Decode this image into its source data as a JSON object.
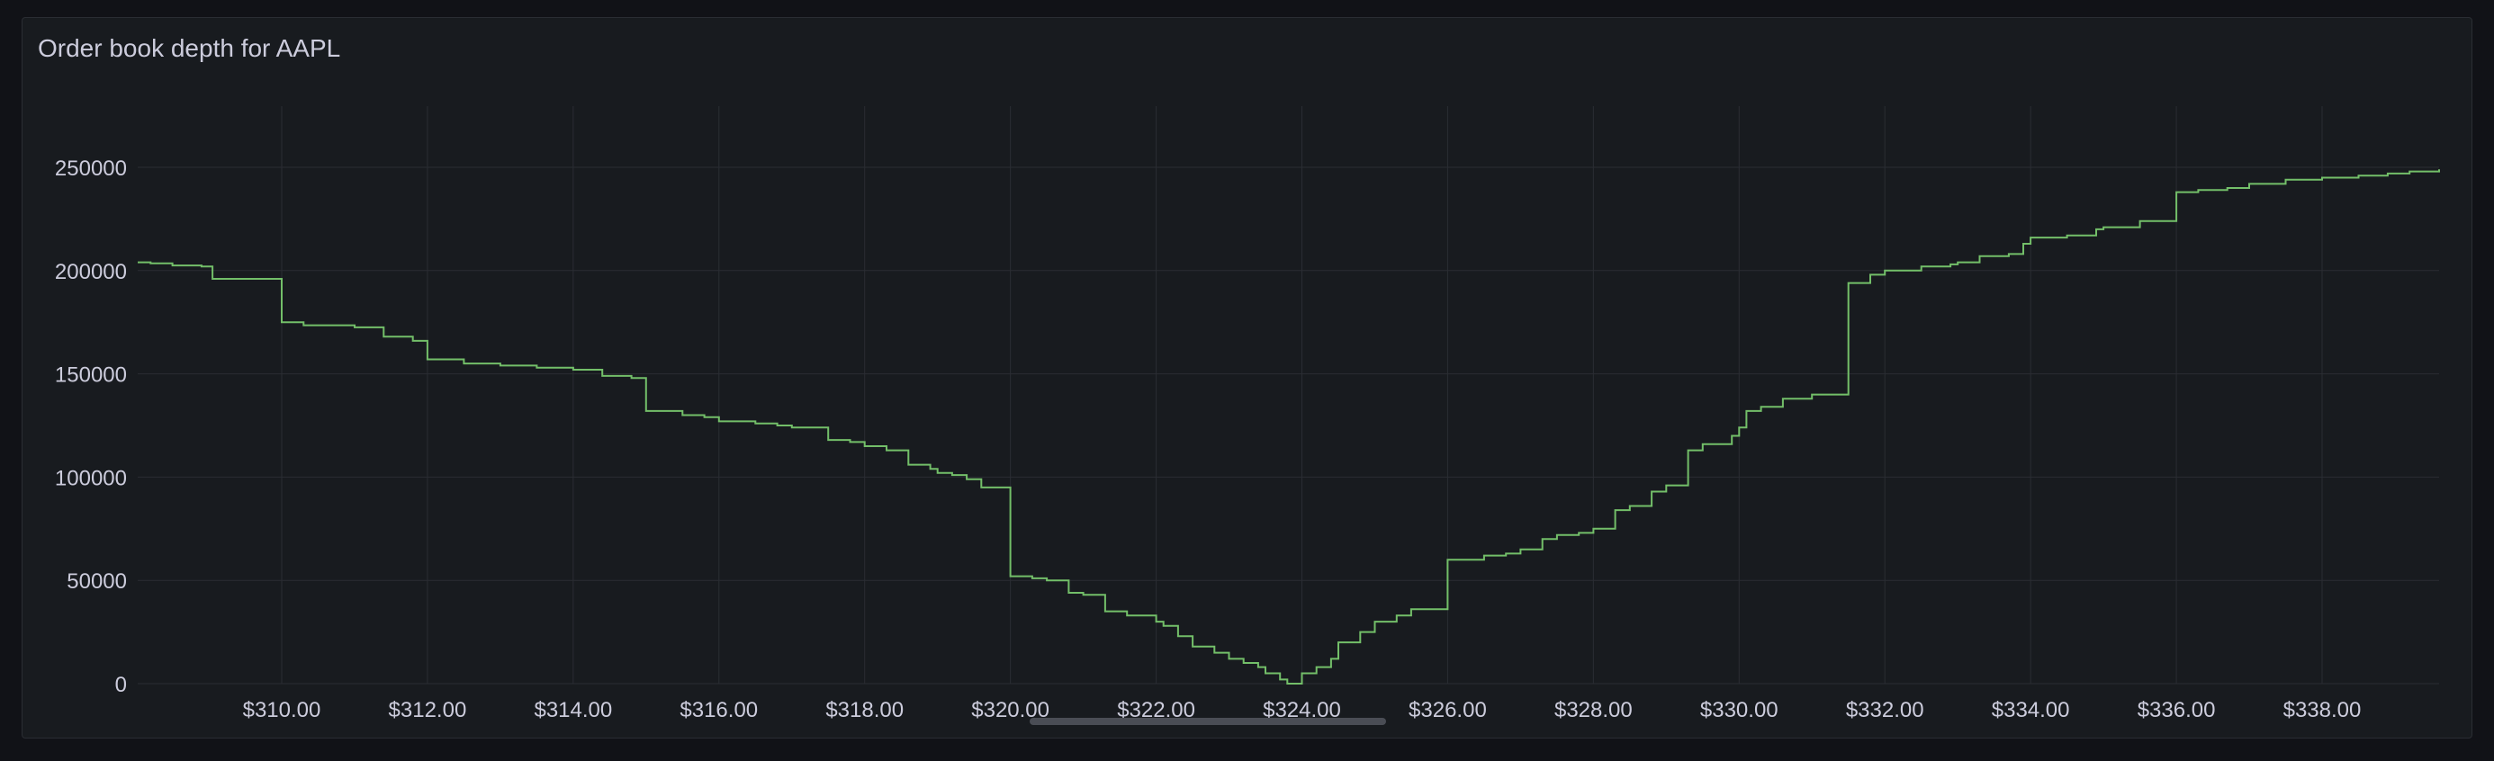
{
  "panel": {
    "title": "Order book depth for AAPL"
  },
  "colors": {
    "background": "#111217",
    "panel": "#181b1f",
    "grid": "#2a2d33",
    "tick_text": "#ccccdc",
    "series": "#73bf69"
  },
  "chart_data": {
    "type": "line",
    "title": "Order book depth for AAPL",
    "xlabel": "",
    "ylabel": "",
    "xlim": [
      308.0,
      339.65
    ],
    "ylim": [
      0,
      280000
    ],
    "x_ticks": [
      310,
      312,
      314,
      316,
      318,
      320,
      322,
      324,
      326,
      328,
      330,
      332,
      334,
      336,
      338
    ],
    "x_tick_labels": [
      "$310.00",
      "$312.00",
      "$314.00",
      "$316.00",
      "$318.00",
      "$320.00",
      "$322.00",
      "$324.00",
      "$326.00",
      "$328.00",
      "$330.00",
      "$332.00",
      "$334.00",
      "$336.00",
      "$338.00"
    ],
    "y_ticks": [
      0,
      50000,
      100000,
      150000,
      200000,
      250000
    ],
    "y_tick_labels": [
      "0",
      "50000",
      "100000",
      "150000",
      "200000",
      "250000"
    ],
    "grid": true,
    "legend": "none",
    "series": [
      {
        "step": true,
        "x": [
          308.0,
          308.2,
          308.5,
          308.9,
          309.05,
          310.0,
          310.3,
          311.0,
          311.4,
          311.8,
          312.0,
          312.5,
          313.0,
          313.5,
          314.0,
          314.4,
          314.8,
          315.0,
          315.5,
          315.8,
          316.0,
          316.5,
          316.8,
          317.0,
          317.5,
          317.8,
          318.0,
          318.3,
          318.6,
          318.9,
          319.0,
          319.2,
          319.4,
          319.6,
          320.0,
          320.3,
          320.5,
          320.8,
          321.0,
          321.3,
          321.6,
          322.0,
          322.1,
          322.3,
          322.5,
          322.8,
          323.0,
          323.2,
          323.4,
          323.5,
          323.7,
          323.8,
          324.0,
          324.2,
          324.4,
          324.5,
          324.8,
          325.0,
          325.3,
          325.5,
          326.0,
          326.5,
          326.8,
          327.0,
          327.3,
          327.5,
          327.8,
          328.0,
          328.3,
          328.5,
          328.8,
          329.0,
          329.3,
          329.5,
          329.9,
          330.0,
          330.1,
          330.3,
          330.6,
          331.0,
          331.5,
          331.8,
          332.0,
          332.5,
          332.9,
          333.0,
          333.3,
          333.7,
          333.9,
          334.0,
          334.5,
          334.9,
          335.0,
          335.5,
          336.0,
          336.3,
          336.7,
          337.0,
          337.5,
          338.0,
          338.5,
          338.9,
          339.2,
          339.65
        ],
        "y": [
          204000,
          203500,
          202500,
          202000,
          196000,
          175000,
          173500,
          172500,
          168000,
          166000,
          157000,
          155000,
          154000,
          153000,
          152000,
          149000,
          148000,
          132000,
          130000,
          129000,
          127000,
          126000,
          125000,
          124000,
          118000,
          117000,
          115000,
          113000,
          106000,
          104000,
          102000,
          101000,
          99000,
          95000,
          52000,
          51000,
          50000,
          44000,
          43000,
          35000,
          33000,
          30000,
          28000,
          23000,
          18000,
          15000,
          12000,
          10000,
          8000,
          5000,
          2000,
          0,
          5000,
          8000,
          12000,
          20000,
          25000,
          30000,
          33000,
          36000,
          60000,
          62000,
          63000,
          65000,
          70000,
          72000,
          73000,
          75000,
          84000,
          86000,
          93000,
          96000,
          113000,
          116000,
          120000,
          124000,
          132000,
          134000,
          138000,
          140000,
          194000,
          198000,
          200000,
          202000,
          203000,
          204000,
          207000,
          208000,
          213000,
          216000,
          217000,
          220000,
          221000,
          224000,
          238000,
          239000,
          240000,
          242000,
          244000,
          245000,
          246000,
          247000,
          248000,
          249000
        ]
      }
    ]
  }
}
